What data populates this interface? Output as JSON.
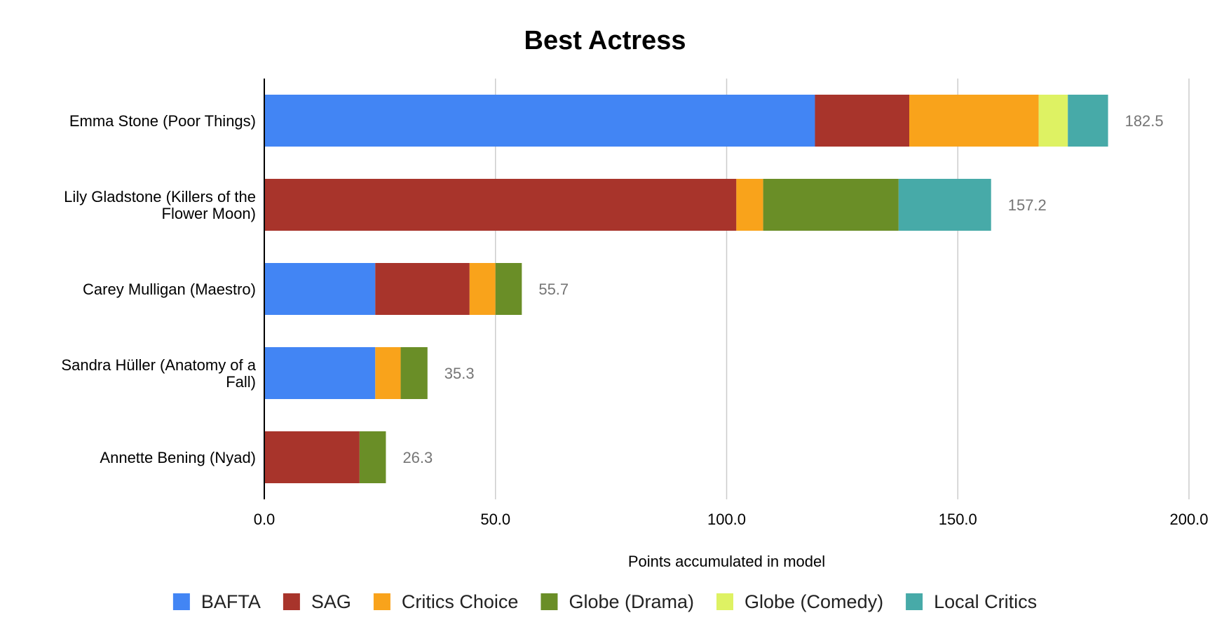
{
  "chart_data": {
    "type": "bar",
    "orientation": "horizontal",
    "stacked": true,
    "title": "Best Actress",
    "xlabel": "Points accumulated in model",
    "ylabel": "",
    "xlim": [
      0,
      200
    ],
    "x_ticks": [
      "0.0",
      "50.0",
      "100.0",
      "150.0",
      "200.0"
    ],
    "x_tick_values": [
      0,
      50,
      100,
      150,
      200
    ],
    "grid": true,
    "legend_position": "bottom",
    "categories": [
      [
        "Emma Stone (Poor Things)"
      ],
      [
        "Lily Gladstone (Killers of the",
        "Flower Moon)"
      ],
      [
        "Carey Mulligan (Maestro)"
      ],
      [
        "Sandra Hüller (Anatomy of a",
        "Fall)"
      ],
      [
        "Annette Bening (Nyad)"
      ]
    ],
    "totals": [
      "182.5",
      "157.2",
      "55.7",
      "35.3",
      "26.3"
    ],
    "series": [
      {
        "name": "BAFTA",
        "color": "#4285f4",
        "values": [
          119.1,
          0,
          24.0,
          24.0,
          0
        ]
      },
      {
        "name": "SAG",
        "color": "#a8342b",
        "values": [
          20.4,
          102.1,
          20.4,
          0,
          20.6
        ]
      },
      {
        "name": "Critics Choice",
        "color": "#f9a31b",
        "values": [
          28.0,
          5.8,
          5.6,
          5.5,
          0
        ]
      },
      {
        "name": "Globe (Drama)",
        "color": "#6a8e27",
        "values": [
          0,
          29.3,
          5.7,
          5.8,
          5.7
        ]
      },
      {
        "name": "Globe (Comedy)",
        "color": "#def263",
        "values": [
          6.3,
          0,
          0,
          0,
          0
        ]
      },
      {
        "name": "Local Critics",
        "color": "#47aaa8",
        "values": [
          8.7,
          20.0,
          0,
          0,
          0
        ]
      }
    ]
  }
}
